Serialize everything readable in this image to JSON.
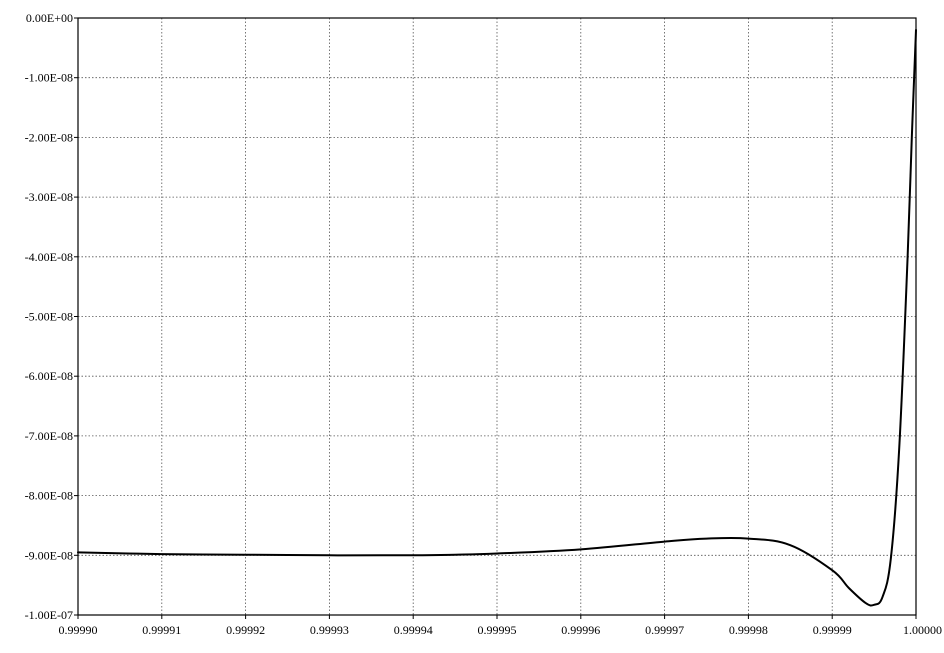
{
  "chart_data": {
    "type": "line",
    "title": "",
    "xlabel": "",
    "ylabel": "",
    "xlim": [
      0.9999,
      1.0
    ],
    "ylim": [
      -1e-07,
      0.0
    ],
    "grid": true,
    "x_ticks": [
      0.9999,
      0.99991,
      0.99992,
      0.99993,
      0.99994,
      0.99995,
      0.99996,
      0.99997,
      0.99998,
      0.99999,
      1.0
    ],
    "x_tick_labels": [
      "0.99990",
      "0.99991",
      "0.99992",
      "0.99993",
      "0.99994",
      "0.99995",
      "0.99996",
      "0.99997",
      "0.99998",
      "0.99999",
      "1.00000"
    ],
    "y_ticks": [
      0.0,
      -1e-08,
      -2e-08,
      -3e-08,
      -4e-08,
      -5e-08,
      -6e-08,
      -7e-08,
      -8e-08,
      -9e-08,
      -1e-07
    ],
    "y_tick_labels": [
      "0.00E+00",
      "-1.00E-08",
      "-2.00E-08",
      "-3.00E-08",
      "-4.00E-08",
      "-5.00E-08",
      "-6.00E-08",
      "-7.00E-08",
      "-8.00E-08",
      "-9.00E-08",
      "-1.00E-07"
    ],
    "series": [
      {
        "color": "#000000",
        "x": [
          0.9999,
          0.99991,
          0.99992,
          0.99993,
          0.99994,
          0.999945,
          0.99995,
          0.99996,
          0.99997,
          0.999975,
          0.99998,
          0.999985,
          0.99999,
          0.999992,
          0.999994,
          0.999995,
          0.999996,
          0.999997,
          0.999998,
          0.999999,
          0.9999995,
          1.0
        ],
        "y": [
          -8.95e-08,
          -8.98e-08,
          -8.99e-08,
          -9e-08,
          -9e-08,
          -8.99e-08,
          -8.97e-08,
          -8.9e-08,
          -8.77e-08,
          -8.72e-08,
          -8.72e-08,
          -8.83e-08,
          -9.25e-08,
          -9.55e-08,
          -9.8e-08,
          -9.83e-08,
          -9.7e-08,
          -9.05e-08,
          -7.2e-08,
          -4e-08,
          -2e-08,
          -2e-09
        ]
      }
    ]
  }
}
